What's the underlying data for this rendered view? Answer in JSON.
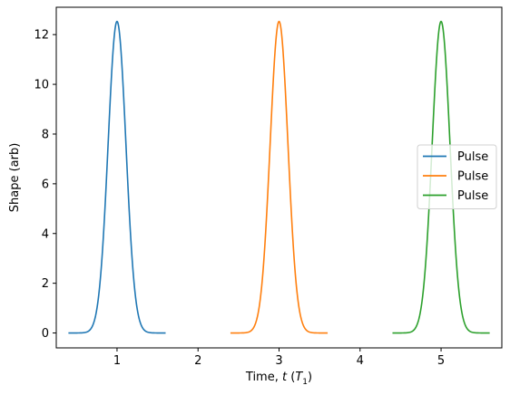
{
  "chart_data": {
    "type": "line",
    "xlabel": "Time, t (T1)",
    "xlabel_parts": {
      "prefix": "Time, ",
      "var": "t",
      "open": " (",
      "unit": "T",
      "unit_sub": "1",
      "close": ")"
    },
    "ylabel": "Shape (arb)",
    "xlim": [
      0.25,
      5.75
    ],
    "ylim": [
      -0.6,
      13.1
    ],
    "xticks": [
      1,
      2,
      3,
      4,
      5
    ],
    "yticks": [
      0,
      2,
      4,
      6,
      8,
      10,
      12
    ],
    "grid": false,
    "legend_position": "center-right",
    "series": [
      {
        "name": "Pulse",
        "color": "#1f77b4",
        "center": 1,
        "peak": 12.53,
        "x_range": [
          0.4,
          1.6
        ],
        "sigma": 0.11
      },
      {
        "name": "Pulse",
        "color": "#ff7f0e",
        "center": 3,
        "peak": 12.53,
        "x_range": [
          2.4,
          3.6
        ],
        "sigma": 0.11
      },
      {
        "name": "Pulse",
        "color": "#2ca02c",
        "center": 5,
        "peak": 12.53,
        "x_range": [
          4.4,
          5.6
        ],
        "sigma": 0.11
      }
    ]
  }
}
